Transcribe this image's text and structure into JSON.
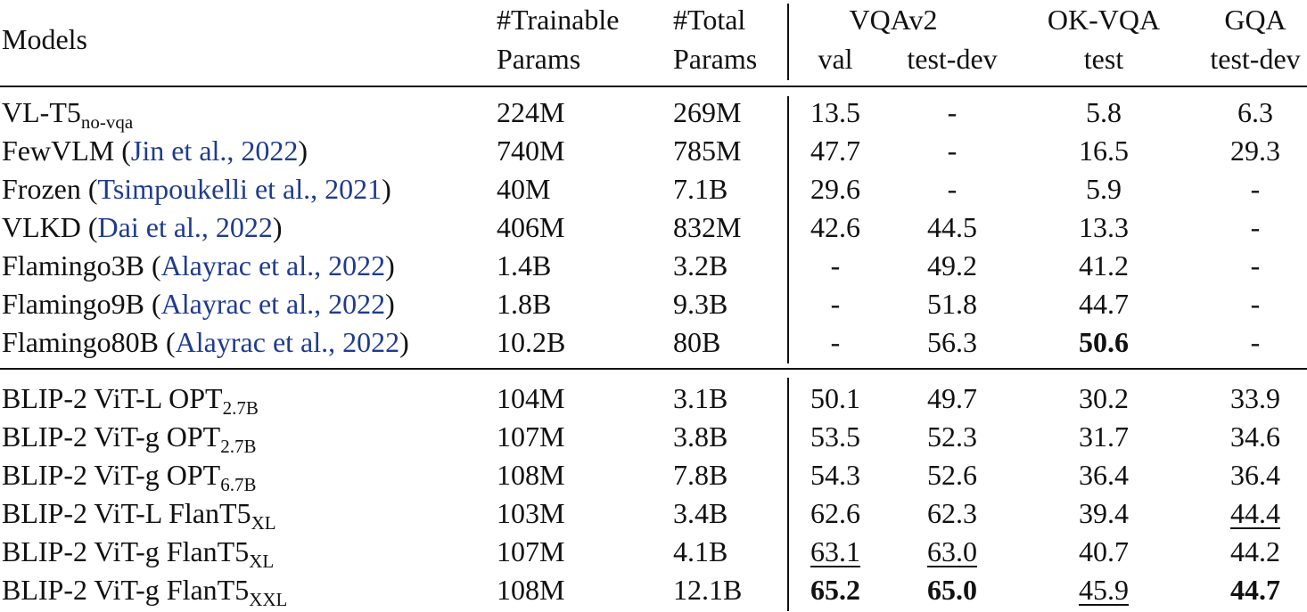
{
  "header": {
    "models": "Models",
    "trainable_1": "#Trainable",
    "trainable_2": "Params",
    "total_1": "#Total",
    "total_2": "Params",
    "vqav2": "VQAv2",
    "okvqa": "OK-VQA",
    "gqa": "GQA",
    "val": "val",
    "testdev1": "test-dev",
    "test": "test",
    "testdev2": "test-dev"
  },
  "rows": [
    {
      "name": "VL-T5",
      "sub": "no-vqa",
      "cite": "",
      "trainable": "224M",
      "total": "269M",
      "val": "13.5",
      "testdev": "-",
      "okvqa": "5.8",
      "gqa": "6.3"
    },
    {
      "name": "FewVLM",
      "sub": "",
      "cite": "Jin et al., 2022",
      "trainable": "740M",
      "total": "785M",
      "val": "47.7",
      "testdev": "-",
      "okvqa": "16.5",
      "gqa": "29.3"
    },
    {
      "name": "Frozen",
      "sub": "",
      "cite": "Tsimpoukelli et al., 2021",
      "trainable": "40M",
      "total": "7.1B",
      "val": "29.6",
      "testdev": "-",
      "okvqa": "5.9",
      "gqa": "-"
    },
    {
      "name": "VLKD",
      "sub": "",
      "cite": "Dai et al., 2022",
      "trainable": "406M",
      "total": "832M",
      "val": "42.6",
      "testdev": "44.5",
      "okvqa": "13.3",
      "gqa": "-"
    },
    {
      "name": "Flamingo3B",
      "sub": "",
      "cite": "Alayrac et al., 2022",
      "trainable": "1.4B",
      "total": "3.2B",
      "val": "-",
      "testdev": "49.2",
      "okvqa": "41.2",
      "gqa": "-"
    },
    {
      "name": "Flamingo9B",
      "sub": "",
      "cite": "Alayrac et al., 2022",
      "trainable": "1.8B",
      "total": "9.3B",
      "val": "-",
      "testdev": "51.8",
      "okvqa": "44.7",
      "gqa": "-"
    },
    {
      "name": "Flamingo80B",
      "sub": "",
      "cite": "Alayrac et al., 2022",
      "trainable": "10.2B",
      "total": "80B",
      "val": "-",
      "testdev": "56.3",
      "okvqa": "50.6",
      "gqa": "-",
      "okvqa_style": "b"
    },
    {
      "name": "BLIP-2 ViT-L OPT",
      "sub": "2.7B",
      "cite": "",
      "trainable": "104M",
      "total": "3.1B",
      "val": "50.1",
      "testdev": "49.7",
      "okvqa": "30.2",
      "gqa": "33.9"
    },
    {
      "name": "BLIP-2 ViT-g OPT",
      "sub": "2.7B",
      "cite": "",
      "trainable": "107M",
      "total": "3.8B",
      "val": "53.5",
      "testdev": "52.3",
      "okvqa": "31.7",
      "gqa": "34.6"
    },
    {
      "name": "BLIP-2 ViT-g OPT",
      "sub": "6.7B",
      "cite": "",
      "trainable": "108M",
      "total": "7.8B",
      "val": "54.3",
      "testdev": "52.6",
      "okvqa": "36.4",
      "gqa": "36.4"
    },
    {
      "name": "BLIP-2 ViT-L FlanT5",
      "sub": "XL",
      "cite": "",
      "trainable": "103M",
      "total": "3.4B",
      "val": "62.6",
      "testdev": "62.3",
      "okvqa": "39.4",
      "gqa": "44.4",
      "gqa_style": "u"
    },
    {
      "name": "BLIP-2 ViT-g FlanT5",
      "sub": "XL",
      "cite": "",
      "trainable": "107M",
      "total": "4.1B",
      "val": "63.1",
      "testdev": "63.0",
      "okvqa": "40.7",
      "gqa": "44.2",
      "val_style": "u",
      "testdev_style": "u"
    },
    {
      "name": "BLIP-2 ViT-g FlanT5",
      "sub": "XXL",
      "cite": "",
      "trainable": "108M",
      "total": "12.1B",
      "val": "65.2",
      "testdev": "65.0",
      "okvqa": "45.9",
      "gqa": "44.7",
      "val_style": "b",
      "testdev_style": "b",
      "okvqa_style": "u",
      "gqa_style": "b"
    }
  ]
}
